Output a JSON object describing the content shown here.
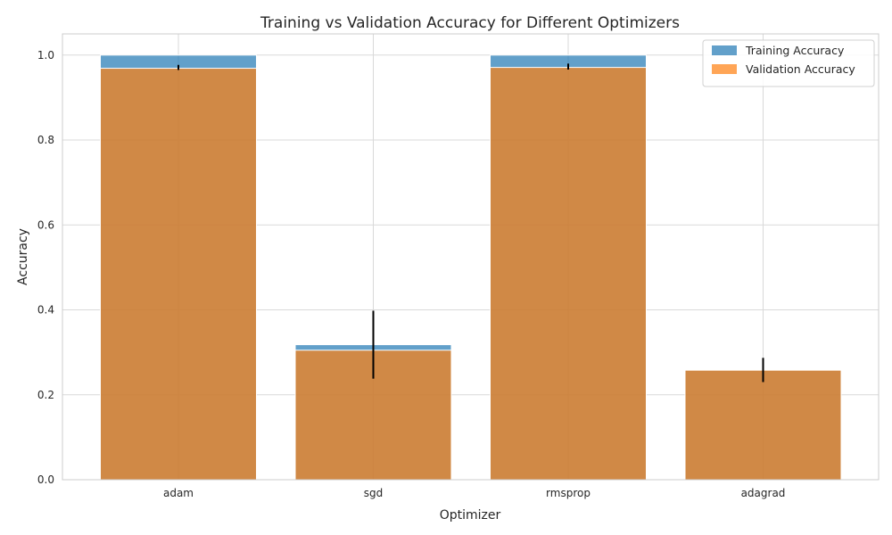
{
  "chart_data": {
    "type": "bar",
    "title": "Training vs Validation Accuracy for Different Optimizers",
    "xlabel": "Optimizer",
    "ylabel": "Accuracy",
    "categories": [
      "adam",
      "sgd",
      "rmsprop",
      "adagrad"
    ],
    "ylim": [
      0,
      1.05
    ],
    "yticks": [
      "0.0",
      "0.2",
      "0.4",
      "0.6",
      "0.8",
      "1.0"
    ],
    "grid": true,
    "legend_position": "top-right",
    "series": [
      {
        "name": "Training Accuracy",
        "color": "#1f77b4",
        "values": [
          1.0,
          0.318,
          1.0,
          0.258
        ]
      },
      {
        "name": "Validation Accuracy",
        "color": "#ff7f0e",
        "values": [
          0.969,
          0.305,
          0.971,
          0.258
        ]
      }
    ],
    "error_bars": [
      {
        "category": "adam",
        "low": 0.965,
        "high": 0.977
      },
      {
        "category": "sgd",
        "low": 0.238,
        "high": 0.398
      },
      {
        "category": "rmsprop",
        "low": 0.966,
        "high": 0.98
      },
      {
        "category": "adagrad",
        "low": 0.23,
        "high": 0.287
      }
    ]
  }
}
